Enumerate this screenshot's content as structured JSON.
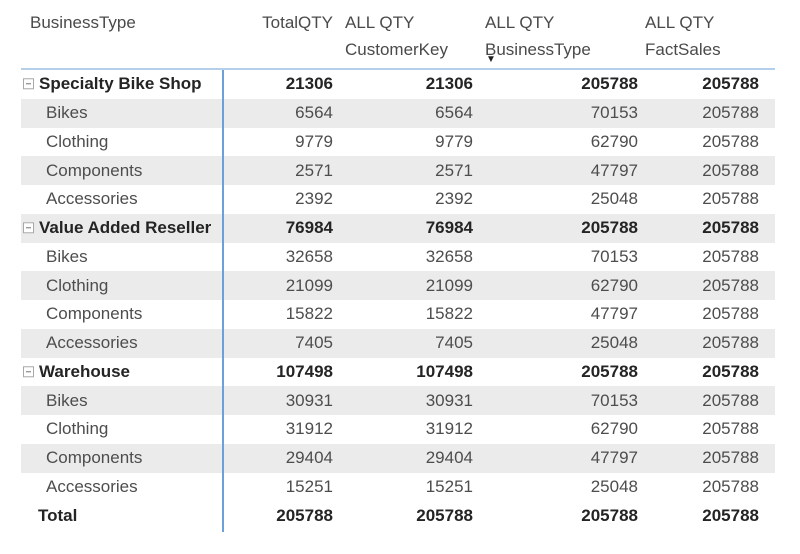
{
  "visual_type": "power-bi-matrix",
  "icons": {
    "sort_descending": "▼",
    "collapse": "minus-square (css shape)"
  },
  "colors": {
    "column_separator_blue": "#6BA0D8",
    "header_underline_blue": "#B3CFEA",
    "row_band_gray": "#EBEBEB",
    "bold_text": "#242424",
    "regular_text": "#4D4D4D",
    "header_text": "#4A4A4A",
    "background": "#FFFFFF"
  },
  "chart_data": {
    "type": "table",
    "title": "",
    "columns": [
      {
        "lines": [
          "BusinessType"
        ]
      },
      {
        "lines": [
          "TotalQTY"
        ]
      },
      {
        "lines": [
          "ALL QTY",
          "CustomerKey"
        ]
      },
      {
        "lines": [
          "ALL QTY",
          "BusinessType"
        ],
        "sort": "descending"
      },
      {
        "lines": [
          "ALL QTY",
          "FactSales"
        ]
      }
    ],
    "rows": [
      {
        "type": "group",
        "cells": [
          "Specialty Bike Shop",
          21306,
          21306,
          205788,
          205788
        ]
      },
      {
        "type": "detail",
        "cells": [
          "Bikes",
          6564,
          6564,
          70153,
          205788
        ]
      },
      {
        "type": "detail",
        "cells": [
          "Clothing",
          9779,
          9779,
          62790,
          205788
        ]
      },
      {
        "type": "detail",
        "cells": [
          "Components",
          2571,
          2571,
          47797,
          205788
        ]
      },
      {
        "type": "detail",
        "cells": [
          "Accessories",
          2392,
          2392,
          25048,
          205788
        ]
      },
      {
        "type": "group",
        "cells": [
          "Value Added Reseller",
          76984,
          76984,
          205788,
          205788
        ]
      },
      {
        "type": "detail",
        "cells": [
          "Bikes",
          32658,
          32658,
          70153,
          205788
        ]
      },
      {
        "type": "detail",
        "cells": [
          "Clothing",
          21099,
          21099,
          62790,
          205788
        ]
      },
      {
        "type": "detail",
        "cells": [
          "Components",
          15822,
          15822,
          47797,
          205788
        ]
      },
      {
        "type": "detail",
        "cells": [
          "Accessories",
          7405,
          7405,
          25048,
          205788
        ]
      },
      {
        "type": "group",
        "cells": [
          "Warehouse",
          107498,
          107498,
          205788,
          205788
        ]
      },
      {
        "type": "detail",
        "cells": [
          "Bikes",
          30931,
          30931,
          70153,
          205788
        ]
      },
      {
        "type": "detail",
        "cells": [
          "Clothing",
          31912,
          31912,
          62790,
          205788
        ]
      },
      {
        "type": "detail",
        "cells": [
          "Components",
          29404,
          29404,
          47797,
          205788
        ]
      },
      {
        "type": "detail",
        "cells": [
          "Accessories",
          15251,
          15251,
          25048,
          205788
        ]
      },
      {
        "type": "total",
        "cells": [
          "Total",
          205788,
          205788,
          205788,
          205788
        ]
      }
    ]
  }
}
